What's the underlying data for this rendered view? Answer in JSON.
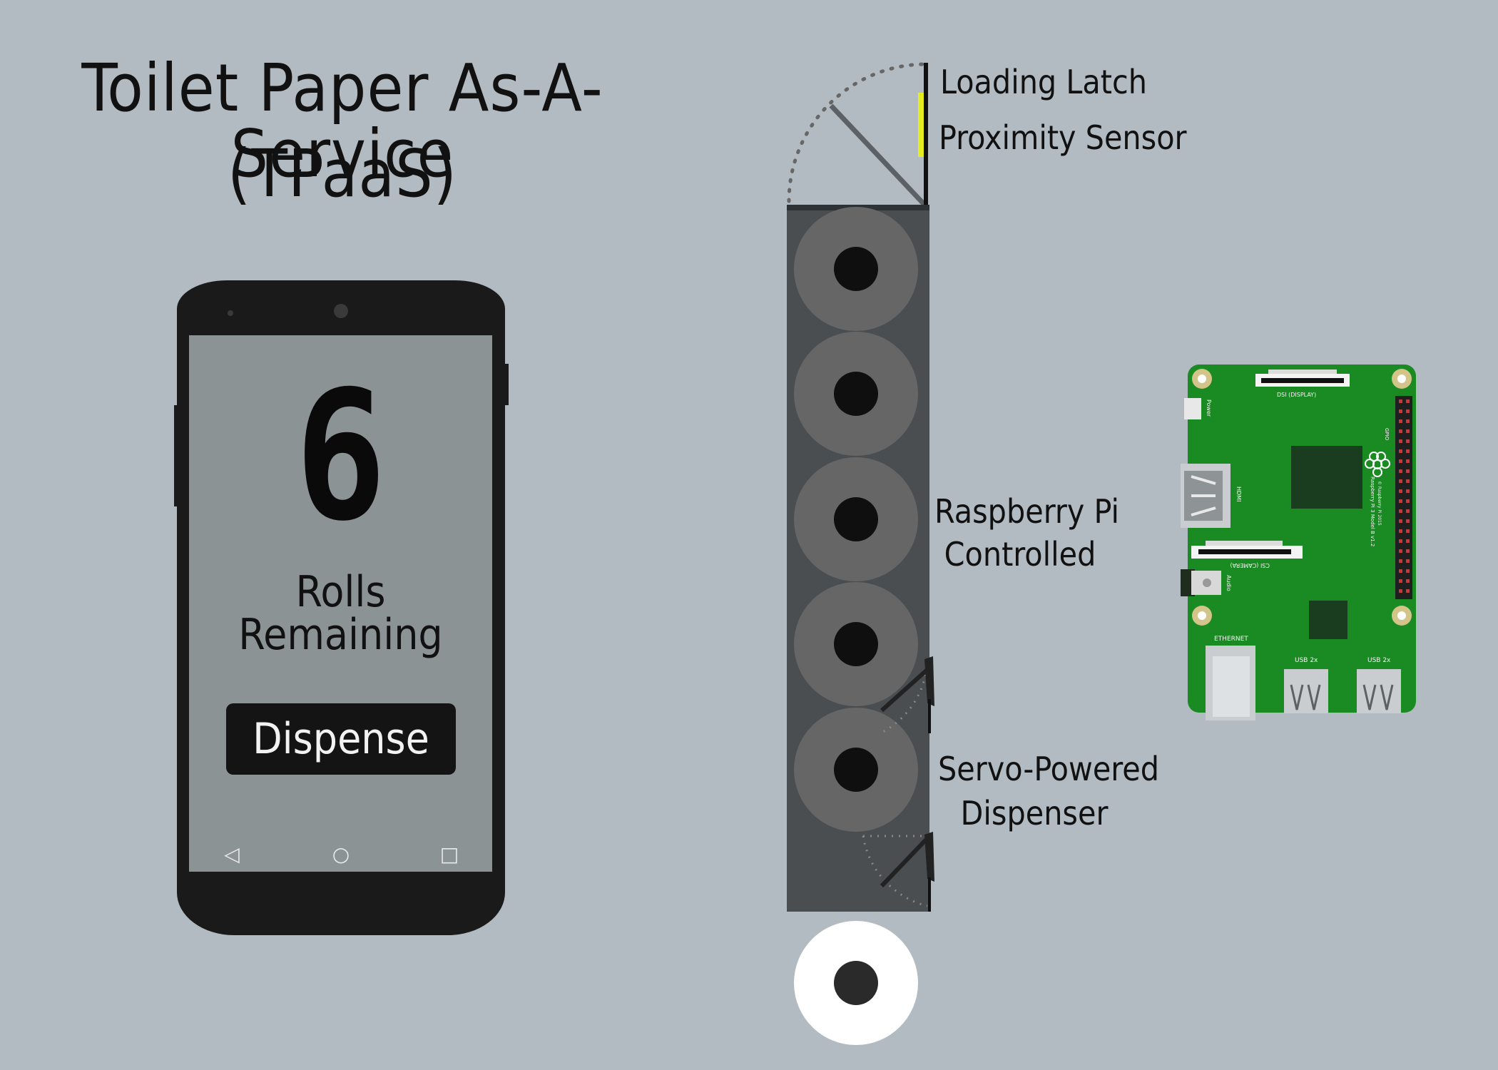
{
  "title": {
    "line1": "Toilet Paper As-A-Service",
    "line2": "(TPaaS)"
  },
  "phone": {
    "count": "6",
    "count_label": "Rolls Remaining",
    "dispense_label": "Dispense",
    "nav": {
      "back": "◁",
      "home": "○",
      "recent": "□"
    }
  },
  "labels": {
    "loading_latch": "Loading Latch",
    "proximity_sensor": "Proximity Sensor",
    "raspberry_pi_line1": "Raspberry Pi",
    "raspberry_pi_line2": "Controlled",
    "servo_line1": "Servo-Powered",
    "servo_line2": "Dispenser"
  },
  "pi_board": {
    "dsi": "DSI (DISPLAY)",
    "csi": "CSI (CAMERA)",
    "power": "Power",
    "hdmi": "HDMI",
    "audio": "Audio",
    "gpio": "GPIO",
    "ethernet": "ETHERNET",
    "usb1": "USB 2x",
    "usb2": "USB 2x",
    "model": "Raspberry Pi 3 Model B v1.2",
    "copyright": "© Raspberry Pi 2015"
  },
  "colors": {
    "background": "#b1bbc1",
    "sensor": "#e4ec1f",
    "board": "#1a8a22",
    "dispenser": "#4a4e51",
    "roll": "#666666"
  }
}
